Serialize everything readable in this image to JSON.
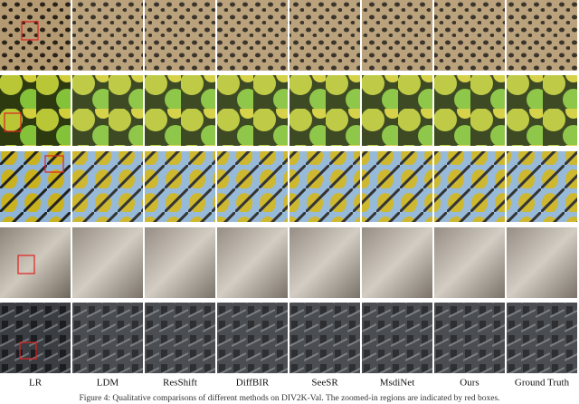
{
  "figure": {
    "columns": [
      "LR",
      "LDM",
      "ResShift",
      "DiffBIR",
      "SeeSR",
      "MsdiNet",
      "Ours",
      "Ground Truth"
    ],
    "caption": "Figure 4: Qualitative comparisons of different methods on DIV2K-Val. The zoomed-in regions are indicated by red boxes."
  }
}
